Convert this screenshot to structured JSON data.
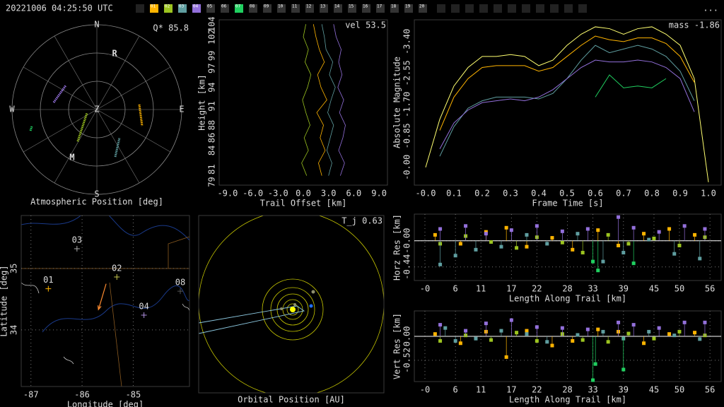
{
  "header": {
    "timestamp": "20221006 04:25:50 UTC",
    "stations": [
      {
        "label": "01",
        "color": "#ffb400"
      },
      {
        "label": "02",
        "color": "#9cc420"
      },
      {
        "label": "03",
        "color": "#5f9ea0"
      },
      {
        "label": "04",
        "color": "#9370db"
      },
      {
        "label": "05",
        "color": "#333333"
      },
      {
        "label": "06",
        "color": "#333333"
      },
      {
        "label": "07",
        "color": "#20d060"
      },
      {
        "label": "08",
        "color": "#333333"
      },
      {
        "label": "09",
        "color": "#333333"
      },
      {
        "label": "10",
        "color": "#333333"
      },
      {
        "label": "11",
        "color": "#333333"
      },
      {
        "label": "12",
        "color": "#333333"
      },
      {
        "label": "13",
        "color": "#333333"
      },
      {
        "label": "14",
        "color": "#333333"
      },
      {
        "label": "15",
        "color": "#333333"
      },
      {
        "label": "16",
        "color": "#333333"
      },
      {
        "label": "17",
        "color": "#333333"
      },
      {
        "label": "18",
        "color": "#333333"
      },
      {
        "label": "19",
        "color": "#333333"
      },
      {
        "label": "20",
        "color": "#333333"
      }
    ],
    "more": "..."
  },
  "chart_data": [
    {
      "type": "polar",
      "title": "Q* 85.8",
      "xlabel": "Atmospheric Position [deg]",
      "directions": [
        "N",
        "E",
        "S",
        "W"
      ],
      "zenith": "Z",
      "markers": [
        {
          "label": "R",
          "az": 17.6,
          "el": 27.8
        },
        {
          "label": "M",
          "az": 207.2,
          "el": 32.6
        }
      ],
      "series": [
        {
          "color": "#ffb400",
          "az": [
            83.3,
            109.8
          ],
          "el": [
            44.7,
            39.0
          ]
        },
        {
          "color": "#9cc420",
          "az": [
            211.0,
            250.3
          ],
          "el": [
            50.6,
            78.8
          ]
        },
        {
          "color": "#5f9ea0",
          "az": [
            158.8,
            141.3
          ],
          "el": [
            36.1,
            51.6
          ]
        },
        {
          "color": "#9370db",
          "az": [
            279.3,
            307.7
          ],
          "el": [
            43.6,
            48.3
          ]
        },
        {
          "color": "#20d060",
          "az": [
            252.3,
            255.4
          ],
          "el": [
            16.0,
            18.7
          ]
        }
      ]
    },
    {
      "type": "profile",
      "title": "vel 53.5",
      "xlabel": "Trail Offset [km]",
      "ylabel": "Height [km]",
      "xlim": [
        -10,
        10
      ],
      "ylim": [
        78.5,
        104.7
      ],
      "xticks": [
        {
          "value": -9,
          "label": "-9.0"
        },
        {
          "value": -6,
          "label": "-6.0"
        },
        {
          "value": -3,
          "label": "-3.0"
        },
        {
          "value": 0,
          "label": "0.0"
        },
        {
          "value": 3,
          "label": "3.0"
        },
        {
          "value": 6,
          "label": "6.0"
        },
        {
          "value": 9,
          "label": "9.0"
        }
      ],
      "yticks": [
        79,
        81,
        84,
        86,
        88,
        91,
        94,
        97,
        99,
        102,
        104
      ],
      "y": [
        80,
        82,
        84,
        86,
        88,
        90,
        92,
        94,
        96,
        98,
        100,
        102,
        104
      ],
      "series": [
        {
          "color": "#9cc420",
          "x": [
            0.4,
            -0.2,
            0.6,
            0.1,
            0.8,
            0.3,
            -0.1,
            0.5,
            0.9,
            0.2,
            0.6,
            0.0,
            0.3
          ]
        },
        {
          "color": "#ffb400",
          "x": [
            2.2,
            1.8,
            2.6,
            2.0,
            2.4,
            1.6,
            2.8,
            2.1,
            1.7,
            2.5,
            1.9,
            1.5,
            1.2
          ]
        },
        {
          "color": "#5f9ea0",
          "x": [
            3.0,
            3.4,
            2.8,
            3.2,
            3.6,
            2.9,
            3.3,
            3.8,
            3.1,
            3.5,
            2.7,
            2.5,
            2.2
          ]
        },
        {
          "color": "#9370db",
          "x": [
            4.4,
            4.9,
            4.2,
            4.7,
            5.0,
            4.3,
            4.8,
            4.1,
            4.6,
            4.2,
            4.5,
            3.9,
            3.6
          ]
        }
      ]
    },
    {
      "type": "line",
      "title": "mass -1.86",
      "xlabel": "Frame Time [s]",
      "ylabel": "Absolute Magnitude",
      "xlim": [
        -0.04,
        1.045
      ],
      "ylim": [
        0.48,
        -3.99
      ],
      "xticks": [
        {
          "value": 0,
          "label": "-0.0"
        },
        {
          "value": 0.1,
          "label": "0.1"
        },
        {
          "value": 0.2,
          "label": "0.2"
        },
        {
          "value": 0.3,
          "label": "0.3"
        },
        {
          "value": 0.4,
          "label": "0.4"
        },
        {
          "value": 0.5,
          "label": "0.5"
        },
        {
          "value": 0.6,
          "label": "0.6"
        },
        {
          "value": 0.7,
          "label": "0.7"
        },
        {
          "value": 0.8,
          "label": "0.8"
        },
        {
          "value": 0.9,
          "label": "0.9"
        },
        {
          "value": 1,
          "label": "1.0"
        }
      ],
      "yticks": [
        {
          "value": 0,
          "label": "-0.00"
        },
        {
          "value": -0.85,
          "label": "-0.85"
        },
        {
          "value": -1.7,
          "label": "-1.70"
        },
        {
          "value": -2.55,
          "label": "-2.55"
        },
        {
          "value": -3.4,
          "label": "-3.40"
        }
      ],
      "x": [
        0,
        0.05,
        0.1,
        0.15,
        0.2,
        0.25,
        0.3,
        0.35,
        0.4,
        0.45,
        0.5,
        0.55,
        0.6,
        0.65,
        0.7,
        0.75,
        0.8,
        0.85,
        0.9,
        0.95,
        1
      ],
      "series": [
        {
          "color": "#ffff70",
          "values": [
            0.0,
            -1.3,
            -2.2,
            -2.7,
            -3.0,
            -3.0,
            -3.05,
            -3.0,
            -2.75,
            -2.9,
            -3.3,
            -3.6,
            -3.8,
            -3.75,
            -3.6,
            -3.75,
            -3.8,
            -3.6,
            -3.3,
            -2.4,
            0.4
          ]
        },
        {
          "color": "#ffb400",
          "values": [
            null,
            -1.0,
            -1.9,
            -2.4,
            -2.7,
            -2.75,
            -2.75,
            -2.75,
            -2.6,
            -2.7,
            -3.0,
            -3.3,
            -3.55,
            -3.45,
            -3.4,
            -3.5,
            -3.5,
            -3.35,
            -3.0,
            -2.3,
            null
          ]
        },
        {
          "color": "#5f9ea0",
          "values": [
            null,
            -0.3,
            -1.1,
            -1.6,
            -1.8,
            -1.9,
            -1.9,
            -1.9,
            -1.85,
            -2.0,
            -2.4,
            -2.9,
            -3.3,
            -3.1,
            -3.2,
            -3.3,
            -3.2,
            -3.0,
            -2.6,
            -1.8,
            null
          ]
        },
        {
          "color": "#9370db",
          "values": [
            null,
            -0.5,
            -1.2,
            -1.55,
            -1.75,
            -1.8,
            -1.85,
            -1.8,
            -1.9,
            -2.1,
            -2.4,
            -2.7,
            -2.9,
            -2.85,
            -2.85,
            -2.9,
            -2.85,
            -2.7,
            -2.4,
            -1.5,
            null
          ]
        },
        {
          "color": "#20d060",
          "values": [
            null,
            null,
            null,
            null,
            null,
            null,
            null,
            null,
            null,
            null,
            null,
            null,
            -1.9,
            -2.5,
            -2.15,
            -2.2,
            -2.15,
            -2.4,
            null,
            null,
            null
          ]
        }
      ]
    },
    {
      "type": "map",
      "xlabel": "Longitude [deg]",
      "ylabel": "Latitude [deg]",
      "xlim": [
        -87.19,
        -83.9
      ],
      "ylim": [
        33.08,
        35.86
      ],
      "xticks": [
        -87,
        -86,
        -85
      ],
      "yticks": [
        34,
        35
      ],
      "grid": true,
      "stations": [
        {
          "label": "01",
          "color": "#ffb400",
          "x": -86.66,
          "y": 34.67
        },
        {
          "label": "02",
          "color": "#c8c850",
          "x": -85.32,
          "y": 34.86
        },
        {
          "label": "03",
          "color": "#aaaaaa",
          "x": -86.1,
          "y": 35.32
        },
        {
          "label": "04",
          "color": "#b090e0",
          "x": -84.79,
          "y": 34.24
        },
        {
          "label": "08",
          "color": "#555555",
          "x": -84.08,
          "y": 34.63
        }
      ],
      "track": {
        "color": "#ff8c30",
        "x": [
          -85.53,
          -85.68
        ],
        "y": [
          34.75,
          34.33
        ]
      }
    },
    {
      "type": "orbit",
      "title": "T_j 0.63",
      "xlabel": "Orbital Position [AU]"
    },
    {
      "type": "residual",
      "xlabel": "Length Along Trail [km]",
      "ylabel": "Horz Res [km]",
      "xlim": [
        -2.08,
        58.2
      ],
      "ylim": [
        -0.67,
        0.45
      ],
      "grid": true,
      "xticks": [
        {
          "value": 0,
          "label": "-0"
        },
        6,
        11,
        17,
        22,
        28,
        33,
        39,
        45,
        50,
        56
      ],
      "yticks": [
        {
          "value": 0,
          "label": "-0.00"
        },
        -0.44
      ],
      "series": [
        {
          "color": "#ffb400",
          "x": [
            2,
            7,
            12,
            16,
            20,
            25,
            29,
            34,
            38,
            43,
            48,
            53
          ],
          "values": [
            0.1,
            -0.05,
            0.15,
            0.22,
            -0.1,
            0.05,
            -0.15,
            0.18,
            -0.08,
            0.12,
            0.2,
            0.1
          ]
        },
        {
          "color": "#9cc420",
          "x": [
            3,
            8,
            13,
            18,
            22,
            27,
            31,
            36,
            40,
            45,
            50,
            55
          ],
          "values": [
            -0.05,
            0.08,
            -0.02,
            -0.12,
            0.06,
            -0.03,
            -0.2,
            0.1,
            -0.05,
            0.04,
            -0.08,
            0.06
          ]
        },
        {
          "color": "#5f9ea0",
          "x": [
            3,
            6,
            10,
            15,
            20,
            24,
            30,
            35,
            39,
            44,
            49,
            54
          ],
          "values": [
            -0.4,
            -0.25,
            -0.15,
            -0.1,
            0.1,
            -0.05,
            0.12,
            -0.35,
            -0.2,
            0.02,
            -0.22,
            -0.3
          ]
        },
        {
          "color": "#9370db",
          "x": [
            3,
            8,
            12,
            17,
            22,
            27,
            32,
            38,
            41,
            46,
            51,
            55
          ],
          "values": [
            0.2,
            0.25,
            0.12,
            0.18,
            0.25,
            0.16,
            0.2,
            0.4,
            0.22,
            0.15,
            0.25,
            0.2
          ]
        },
        {
          "color": "#20d060",
          "x": [
            33,
            34,
            41
          ],
          "values": [
            -0.35,
            -0.5,
            -0.38
          ]
        }
      ]
    },
    {
      "type": "residual",
      "xlabel": "Length Along Trail [km]",
      "ylabel": "Vert Res [km]",
      "xlim": [
        -2.08,
        58.2
      ],
      "ylim": [
        -0.98,
        0.55
      ],
      "grid": true,
      "xticks": [
        {
          "value": 0,
          "label": "-0"
        },
        6,
        11,
        17,
        22,
        28,
        33,
        39,
        45,
        50,
        56
      ],
      "yticks": [
        {
          "value": 0,
          "label": "0.00"
        },
        -0.52
      ],
      "series": [
        {
          "color": "#ffb400",
          "x": [
            2,
            7,
            12,
            16,
            20,
            25,
            29,
            34,
            38,
            43,
            48,
            53
          ],
          "values": [
            0.05,
            -0.15,
            0.1,
            -0.45,
            0.12,
            -0.2,
            -0.1,
            0.15,
            0.1,
            -0.15,
            0.05,
            0.08
          ]
        },
        {
          "color": "#9cc420",
          "x": [
            3,
            8,
            13,
            18,
            22,
            27,
            31,
            36,
            40,
            45,
            50,
            55
          ],
          "values": [
            -0.1,
            0.02,
            -0.08,
            0.08,
            -0.1,
            0.05,
            -0.08,
            -0.12,
            0.06,
            -0.05,
            0.1,
            0.02
          ]
        },
        {
          "color": "#5f9ea0",
          "x": [
            4,
            6,
            10,
            15,
            20,
            24,
            30,
            35,
            39,
            44,
            49,
            54
          ],
          "values": [
            0.18,
            -0.1,
            -0.05,
            0.12,
            0.05,
            -0.12,
            0.03,
            0.1,
            -0.05,
            0.1,
            0.02,
            -0.06
          ]
        },
        {
          "color": "#9370db",
          "x": [
            3,
            8,
            12,
            17,
            22,
            27,
            32,
            38,
            41,
            46,
            51,
            55
          ],
          "values": [
            0.25,
            0.12,
            0.28,
            0.35,
            0.2,
            0.18,
            0.15,
            0.3,
            0.25,
            0.18,
            0.3,
            0.3
          ]
        },
        {
          "color": "#20d060",
          "x": [
            33,
            33.5,
            39
          ],
          "values": [
            -0.95,
            -0.6,
            -0.72
          ]
        }
      ]
    }
  ]
}
